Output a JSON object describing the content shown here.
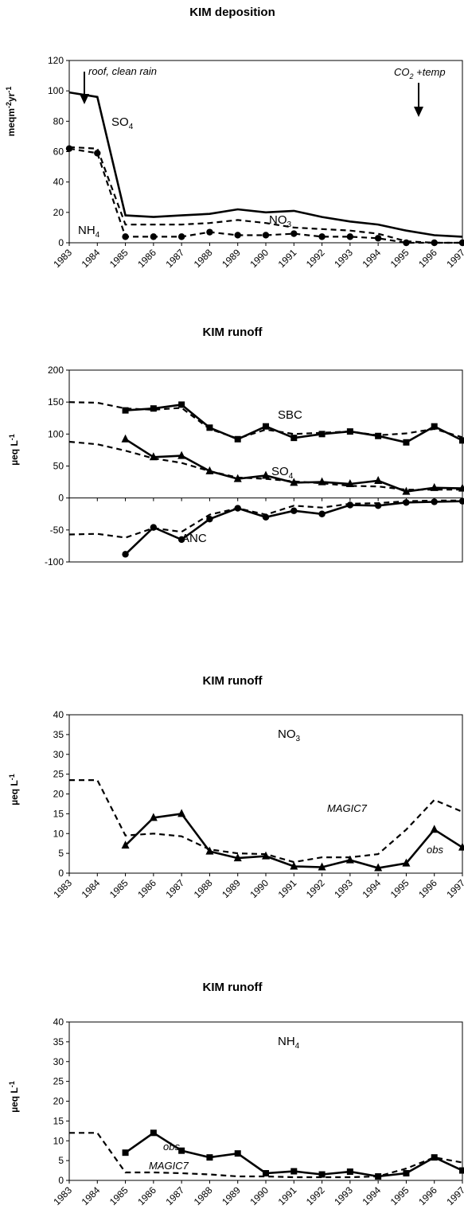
{
  "chart_data": [
    {
      "id": "dep",
      "type": "line",
      "title": "KIM deposition",
      "ylabel": "meqm-2yr-1",
      "ylim": [
        0,
        120
      ],
      "yticks": [
        "0",
        "20",
        "40",
        "60",
        "80",
        "100",
        "120"
      ],
      "categories": [
        "1983",
        "1984",
        "1985",
        "1986",
        "1987",
        "1988",
        "1989",
        "1990",
        "1991",
        "1992",
        "1993",
        "1994",
        "1995",
        "1996",
        "1997"
      ],
      "series": [
        {
          "name": "SO4",
          "style": "solid",
          "marker": "none",
          "points": [
            [
              1983,
              99
            ],
            [
              1984,
              96
            ],
            [
              1985,
              18
            ],
            [
              1986,
              17
            ],
            [
              1987,
              18
            ],
            [
              1988,
              19
            ],
            [
              1989,
              22
            ],
            [
              1990,
              20
            ],
            [
              1991,
              21
            ],
            [
              1992,
              17
            ],
            [
              1993,
              14
            ],
            [
              1994,
              12
            ],
            [
              1995,
              8
            ],
            [
              1996,
              5
            ],
            [
              1997,
              4
            ]
          ]
        },
        {
          "name": "NO3",
          "style": "dashed",
          "marker": "none",
          "points": [
            [
              1983,
              63
            ],
            [
              1984,
              62
            ],
            [
              1985,
              12
            ],
            [
              1986,
              12
            ],
            [
              1987,
              12
            ],
            [
              1988,
              13
            ],
            [
              1989,
              15
            ],
            [
              1990,
              13
            ],
            [
              1991,
              10
            ],
            [
              1992,
              9
            ],
            [
              1993,
              8
            ],
            [
              1994,
              6
            ],
            [
              1995,
              1
            ],
            [
              1996,
              0
            ],
            [
              1997,
              0
            ]
          ]
        },
        {
          "name": "NH4",
          "style": "dashed",
          "marker": "circle",
          "points": [
            [
              1983,
              62
            ],
            [
              1984,
              59
            ],
            [
              1985,
              4
            ],
            [
              1986,
              4
            ],
            [
              1987,
              4
            ],
            [
              1988,
              7
            ],
            [
              1989,
              5
            ],
            [
              1990,
              5
            ],
            [
              1991,
              6
            ],
            [
              1992,
              4
            ],
            [
              1993,
              4
            ],
            [
              1994,
              3
            ],
            [
              1995,
              0
            ],
            [
              1996,
              0
            ],
            [
              1997,
              0
            ]
          ]
        }
      ],
      "annotations": {
        "roof": "roof, clean rain",
        "co2_pre": "CO",
        "co2_sub": "2",
        "co2_post": " +temp",
        "so4": "SO",
        "so4_sub": "4",
        "no3": "NO",
        "no3_sub": "3",
        "nh4": "NH",
        "nh4_sub": "4"
      }
    },
    {
      "id": "run1",
      "type": "line",
      "title": "KIM runoff",
      "ylabel": "µeq L-1",
      "ylim": [
        -100,
        200
      ],
      "yticks": [
        "-100",
        "-50",
        "0",
        "50",
        "100",
        "150",
        "200"
      ],
      "series": [
        {
          "name": "SBC obs",
          "style": "solid",
          "marker": "square",
          "points": [
            [
              1985,
              137
            ],
            [
              1986,
              140
            ],
            [
              1987,
              146
            ],
            [
              1988,
              110
            ],
            [
              1989,
              92
            ],
            [
              1990,
              112
            ],
            [
              1991,
              94
            ],
            [
              1992,
              100
            ],
            [
              1993,
              104
            ],
            [
              1994,
              97
            ],
            [
              1995,
              87
            ],
            [
              1996,
              112
            ],
            [
              1997,
              90
            ]
          ]
        },
        {
          "name": "SBC MAGIC7",
          "style": "dashed",
          "marker": "none",
          "points": [
            [
              1983,
              150
            ],
            [
              1984,
              149
            ],
            [
              1985,
              140
            ],
            [
              1986,
              138
            ],
            [
              1987,
              141
            ],
            [
              1988,
              108
            ],
            [
              1989,
              93
            ],
            [
              1990,
              107
            ],
            [
              1991,
              100
            ],
            [
              1992,
              102
            ],
            [
              1993,
              104
            ],
            [
              1994,
              98
            ],
            [
              1995,
              101
            ],
            [
              1996,
              108
            ],
            [
              1997,
              95
            ]
          ]
        },
        {
          "name": "SO4 obs",
          "style": "solid",
          "marker": "triangle",
          "points": [
            [
              1985,
              92
            ],
            [
              1986,
              64
            ],
            [
              1987,
              66
            ],
            [
              1988,
              42
            ],
            [
              1989,
              30
            ],
            [
              1990,
              35
            ],
            [
              1991,
              24
            ],
            [
              1992,
              25
            ],
            [
              1993,
              22
            ],
            [
              1994,
              27
            ],
            [
              1995,
              10
            ],
            [
              1996,
              16
            ],
            [
              1997,
              15
            ]
          ]
        },
        {
          "name": "SO4 MAGIC7",
          "style": "dashed",
          "marker": "none",
          "points": [
            [
              1983,
              88
            ],
            [
              1984,
              84
            ],
            [
              1985,
              74
            ],
            [
              1986,
              62
            ],
            [
              1987,
              55
            ],
            [
              1988,
              42
            ],
            [
              1989,
              32
            ],
            [
              1990,
              30
            ],
            [
              1991,
              26
            ],
            [
              1992,
              23
            ],
            [
              1993,
              19
            ],
            [
              1994,
              18
            ],
            [
              1995,
              13
            ],
            [
              1996,
              13
            ],
            [
              1997,
              13
            ]
          ]
        },
        {
          "name": "ANC obs",
          "style": "solid",
          "marker": "circle",
          "points": [
            [
              1985,
              -88
            ],
            [
              1986,
              -46
            ],
            [
              1987,
              -65
            ],
            [
              1988,
              -33
            ],
            [
              1989,
              -16
            ],
            [
              1990,
              -30
            ],
            [
              1991,
              -20
            ],
            [
              1992,
              -25
            ],
            [
              1993,
              -11
            ],
            [
              1994,
              -12
            ],
            [
              1995,
              -7
            ],
            [
              1996,
              -6
            ],
            [
              1997,
              -5
            ]
          ]
        },
        {
          "name": "ANC MAGIC7",
          "style": "dashed",
          "marker": "none",
          "points": [
            [
              1983,
              -57
            ],
            [
              1984,
              -56
            ],
            [
              1985,
              -62
            ],
            [
              1986,
              -47
            ],
            [
              1987,
              -53
            ],
            [
              1988,
              -26
            ],
            [
              1989,
              -16
            ],
            [
              1990,
              -26
            ],
            [
              1991,
              -12
            ],
            [
              1992,
              -15
            ],
            [
              1993,
              -9
            ],
            [
              1994,
              -8
            ],
            [
              1995,
              -5
            ],
            [
              1996,
              -4
            ],
            [
              1997,
              -4
            ]
          ]
        }
      ],
      "annotations": {
        "sbc": "SBC",
        "so4": "SO",
        "so4_sub": "4",
        "anc": "ANC"
      }
    },
    {
      "id": "run2",
      "type": "line",
      "title": "KIM runoff",
      "ylabel": "µeq L-1",
      "ylim": [
        0,
        40
      ],
      "yticks": [
        "0",
        "5",
        "10",
        "15",
        "20",
        "25",
        "30",
        "35",
        "40"
      ],
      "categories": [
        "1983",
        "1984",
        "1985",
        "1986",
        "1987",
        "1988",
        "1989",
        "1990",
        "1991",
        "1992",
        "1993",
        "1994",
        "1995",
        "1996",
        "1997"
      ],
      "series": [
        {
          "name": "obs",
          "style": "solid",
          "marker": "triangle",
          "points": [
            [
              1985,
              7
            ],
            [
              1986,
              14
            ],
            [
              1987,
              15
            ],
            [
              1988,
              5.5
            ],
            [
              1989,
              3.8
            ],
            [
              1990,
              4.3
            ],
            [
              1991,
              1.7
            ],
            [
              1992,
              1.5
            ],
            [
              1993,
              3.3
            ],
            [
              1994,
              1.3
            ],
            [
              1995,
              2.5
            ],
            [
              1996,
              11
            ],
            [
              1997,
              6.5
            ]
          ]
        },
        {
          "name": "MAGIC7",
          "style": "dashed",
          "marker": "none",
          "points": [
            [
              1983,
              23.5
            ],
            [
              1984,
              23.5
            ],
            [
              1985,
              9.5
            ],
            [
              1986,
              10
            ],
            [
              1987,
              9.3
            ],
            [
              1988,
              6
            ],
            [
              1989,
              5
            ],
            [
              1990,
              4.8
            ],
            [
              1991,
              2.8
            ],
            [
              1992,
              4
            ],
            [
              1993,
              4
            ],
            [
              1994,
              4.8
            ],
            [
              1995,
              11
            ],
            [
              1996,
              18.5
            ],
            [
              1997,
              15.5
            ]
          ]
        }
      ],
      "annotations": {
        "no3": "NO",
        "no3_sub": "3",
        "magic": "MAGIC7",
        "obs": "obs"
      }
    },
    {
      "id": "run3",
      "type": "line",
      "title": "KIM runoff",
      "ylabel": "µeq L-1",
      "ylim": [
        0,
        40
      ],
      "yticks": [
        "0",
        "5",
        "10",
        "15",
        "20",
        "25",
        "30",
        "35",
        "40"
      ],
      "categories": [
        "1983",
        "1984",
        "1985",
        "1986",
        "1987",
        "1988",
        "1989",
        "1990",
        "1991",
        "1992",
        "1993",
        "1994",
        "1995",
        "1996",
        "1997"
      ],
      "series": [
        {
          "name": "obs",
          "style": "solid",
          "marker": "square",
          "points": [
            [
              1985,
              7
            ],
            [
              1986,
              12
            ],
            [
              1987,
              7.5
            ],
            [
              1988,
              5.8
            ],
            [
              1989,
              6.8
            ],
            [
              1990,
              1.8
            ],
            [
              1991,
              2.3
            ],
            [
              1992,
              1.5
            ],
            [
              1993,
              2.2
            ],
            [
              1994,
              1
            ],
            [
              1995,
              1.8
            ],
            [
              1996,
              5.8
            ],
            [
              1997,
              2.5
            ]
          ]
        },
        {
          "name": "MAGIC7",
          "style": "dashed",
          "marker": "none",
          "points": [
            [
              1983,
              12
            ],
            [
              1984,
              12
            ],
            [
              1985,
              2
            ],
            [
              1986,
              2
            ],
            [
              1987,
              1.8
            ],
            [
              1988,
              1.5
            ],
            [
              1989,
              1
            ],
            [
              1990,
              1
            ],
            [
              1991,
              0.8
            ],
            [
              1992,
              0.8
            ],
            [
              1993,
              0.8
            ],
            [
              1994,
              1
            ],
            [
              1995,
              3
            ],
            [
              1996,
              5.8
            ],
            [
              1997,
              4.5
            ]
          ]
        }
      ],
      "annotations": {
        "nh4": "NH",
        "nh4_sub": "4",
        "obs": "obs",
        "magic": "MAGIC7"
      }
    }
  ]
}
